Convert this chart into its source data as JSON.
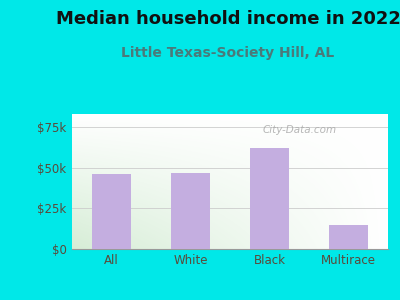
{
  "title": "Median household income in 2022",
  "subtitle": "Little Texas-Society Hill, AL",
  "categories": [
    "All",
    "White",
    "Black",
    "Multirace"
  ],
  "values": [
    46000,
    46500,
    62000,
    14500
  ],
  "bar_color": "#c4aee0",
  "background_color": "#00e8e8",
  "plot_bg_color_topleft": "#d6edd6",
  "plot_bg_color_topright": "#f0f8f0",
  "plot_bg_color_bottomleft": "#e8f5e8",
  "plot_bg_color_bottomright": "#ffffff",
  "yticks": [
    0,
    25000,
    50000,
    75000
  ],
  "ytick_labels": [
    "$0",
    "$25k",
    "$50k",
    "$75k"
  ],
  "ylim": [
    0,
    83000
  ],
  "title_fontsize": 13,
  "subtitle_fontsize": 10,
  "title_color": "#111111",
  "subtitle_color": "#4a7a7a",
  "tick_color": "#5a4a3a",
  "grid_color": "#cccccc",
  "watermark": "City-Data.com",
  "watermark_color": "#aaaaaa"
}
